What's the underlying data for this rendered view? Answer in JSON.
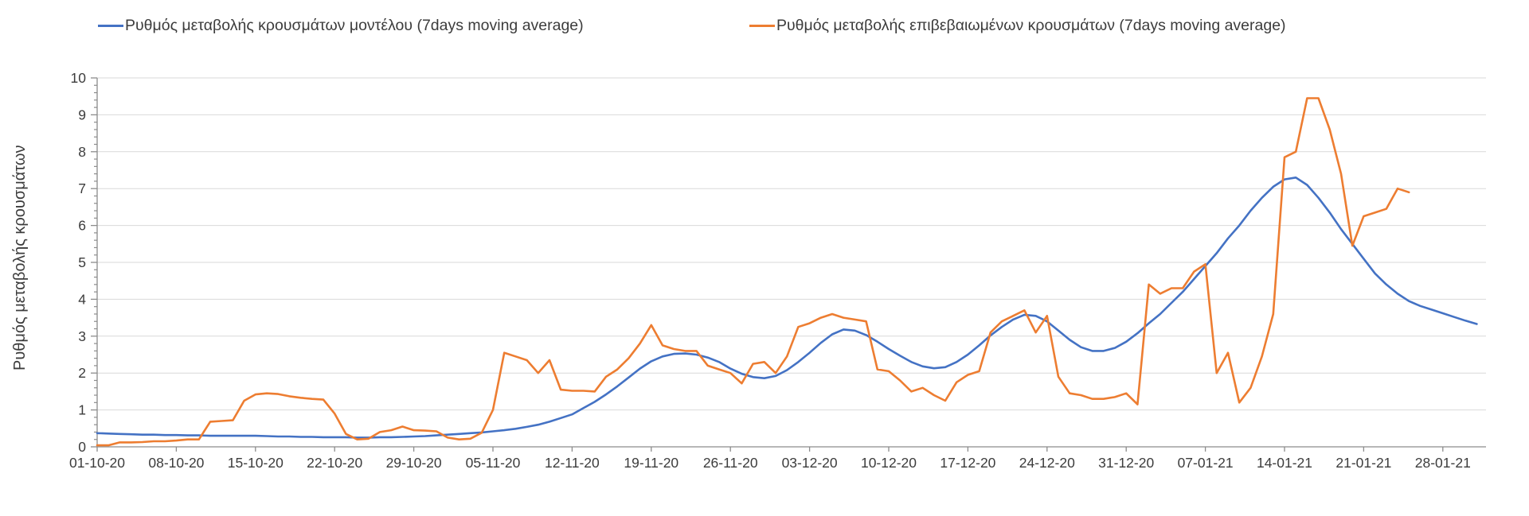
{
  "legend": {
    "model_label": "Ρυθμός μεταβολής κρουσμάτων μοντέλου (7days moving average)",
    "confirmed_label": "Ρυθμός μεταβολής επιβεβαιωμένων κρουσμάτων (7days moving average)"
  },
  "y_axis": {
    "title": "Ρυθμός μεταβολής κρουσμάτων",
    "min": 0,
    "max": 10,
    "major_step": 1,
    "minor_step": 0.2,
    "tick_labels": [
      "0",
      "1",
      "2",
      "3",
      "4",
      "5",
      "6",
      "7",
      "8",
      "9",
      "10"
    ]
  },
  "x_axis": {
    "tick_interval_days": 7,
    "tick_labels": [
      "01-10-20",
      "08-10-20",
      "15-10-20",
      "22-10-20",
      "29-10-20",
      "05-11-20",
      "12-11-20",
      "19-11-20",
      "26-11-20",
      "03-12-20",
      "10-12-20",
      "17-12-20",
      "24-12-20",
      "31-12-20",
      "07-01-21",
      "14-01-21",
      "21-01-21",
      "28-01-21"
    ]
  },
  "colors": {
    "grid": "#d9d9d9",
    "axis": "#8c8c8c",
    "text": "#3c3c3c",
    "background": "#ffffff"
  },
  "chart_data": {
    "type": "line",
    "x_start_date": "01-10-20",
    "x_unit": "day",
    "ylim": [
      0,
      10
    ],
    "grid": "horizontal",
    "legend_position": "top",
    "series": [
      {
        "name": "Ρυθμός μεταβολής κρουσμάτων μοντέλου (7days moving average)",
        "color": "#4472c4",
        "values": [
          0.37,
          0.36,
          0.35,
          0.34,
          0.33,
          0.33,
          0.32,
          0.32,
          0.31,
          0.31,
          0.3,
          0.3,
          0.3,
          0.3,
          0.3,
          0.29,
          0.28,
          0.28,
          0.27,
          0.27,
          0.26,
          0.26,
          0.26,
          0.25,
          0.25,
          0.26,
          0.26,
          0.27,
          0.28,
          0.29,
          0.31,
          0.33,
          0.35,
          0.37,
          0.39,
          0.42,
          0.45,
          0.49,
          0.54,
          0.6,
          0.68,
          0.78,
          0.88,
          1.05,
          1.22,
          1.42,
          1.64,
          1.88,
          2.12,
          2.32,
          2.45,
          2.52,
          2.53,
          2.5,
          2.42,
          2.3,
          2.12,
          1.98,
          1.89,
          1.86,
          1.92,
          2.08,
          2.3,
          2.55,
          2.82,
          3.05,
          3.18,
          3.15,
          3.03,
          2.85,
          2.65,
          2.47,
          2.3,
          2.18,
          2.13,
          2.16,
          2.3,
          2.5,
          2.75,
          3.02,
          3.25,
          3.45,
          3.58,
          3.55,
          3.4,
          3.15,
          2.9,
          2.7,
          2.6,
          2.6,
          2.68,
          2.85,
          3.08,
          3.35,
          3.6,
          3.9,
          4.2,
          4.55,
          4.9,
          5.25,
          5.65,
          6.0,
          6.4,
          6.75,
          7.05,
          7.25,
          7.3,
          7.1,
          6.75,
          6.35,
          5.9,
          5.5,
          5.1,
          4.7,
          4.4,
          4.15,
          3.95,
          3.82,
          3.72,
          3.62,
          3.52,
          3.42,
          3.33
        ]
      },
      {
        "name": "Ρυθμός μεταβολής επιβεβαιωμένων κρουσμάτων (7days moving average)",
        "color": "#ed7d31",
        "values": [
          0.04,
          0.04,
          0.12,
          0.12,
          0.13,
          0.15,
          0.15,
          0.17,
          0.2,
          0.2,
          0.68,
          0.7,
          0.72,
          1.25,
          1.42,
          1.45,
          1.43,
          1.37,
          1.33,
          1.3,
          1.28,
          0.9,
          0.35,
          0.2,
          0.22,
          0.4,
          0.45,
          0.55,
          0.45,
          0.44,
          0.42,
          0.25,
          0.2,
          0.22,
          0.38,
          1.0,
          2.55,
          2.45,
          2.35,
          2.0,
          2.35,
          1.55,
          1.52,
          1.52,
          1.5,
          1.9,
          2.1,
          2.4,
          2.8,
          3.3,
          2.75,
          2.65,
          2.6,
          2.6,
          2.2,
          2.1,
          2.0,
          1.72,
          2.25,
          2.3,
          2.0,
          2.45,
          3.25,
          3.35,
          3.5,
          3.6,
          3.5,
          3.45,
          3.4,
          2.1,
          2.05,
          1.8,
          1.5,
          1.6,
          1.4,
          1.25,
          1.75,
          1.95,
          2.05,
          3.1,
          3.4,
          3.55,
          3.7,
          3.1,
          3.55,
          1.9,
          1.45,
          1.4,
          1.3,
          1.3,
          1.35,
          1.45,
          1.15,
          4.4,
          4.15,
          4.3,
          4.3,
          4.75,
          4.95,
          2.0,
          2.55,
          1.2,
          1.6,
          2.45,
          3.6,
          7.85,
          8.0,
          9.45,
          9.45,
          8.6,
          7.4,
          5.45,
          6.25,
          6.35,
          6.45,
          7.0,
          6.9
        ]
      }
    ]
  }
}
